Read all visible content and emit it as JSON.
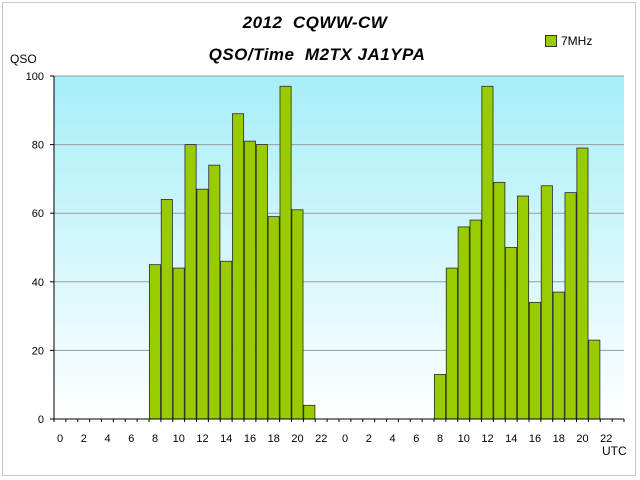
{
  "chart_data": {
    "type": "bar",
    "title": "2012  CQWW-CW",
    "subtitle": "QSO/Time  M2TX JA1YPA",
    "ylabel": "QSO",
    "xlabel": "UTC",
    "ylim": [
      0,
      100
    ],
    "yticks": [
      0,
      20,
      40,
      60,
      80,
      100
    ],
    "grid": true,
    "legend_position": "top-right",
    "categories": [
      "0",
      "1",
      "2",
      "3",
      "4",
      "5",
      "6",
      "7",
      "8",
      "9",
      "10",
      "11",
      "12",
      "13",
      "14",
      "15",
      "16",
      "17",
      "18",
      "19",
      "20",
      "21",
      "22",
      "23",
      "0",
      "1",
      "2",
      "3",
      "4",
      "5",
      "6",
      "7",
      "8",
      "9",
      "10",
      "11",
      "12",
      "13",
      "14",
      "15",
      "16",
      "17",
      "18",
      "19",
      "20",
      "21",
      "22",
      "23"
    ],
    "xtick_labels": [
      "0",
      "",
      "2",
      "",
      "4",
      "",
      "6",
      "",
      "8",
      "",
      "10",
      "",
      "12",
      "",
      "14",
      "",
      "16",
      "",
      "18",
      "",
      "20",
      "",
      "22",
      "",
      "0",
      "",
      "2",
      "",
      "4",
      "",
      "6",
      "",
      "8",
      "",
      "10",
      "",
      "12",
      "",
      "14",
      "",
      "16",
      "",
      "18",
      "",
      "20",
      "",
      "22",
      ""
    ],
    "series": [
      {
        "name": "7MHz",
        "color": "#99cc00",
        "values": [
          0,
          0,
          0,
          0,
          0,
          0,
          0,
          0,
          45,
          64,
          44,
          80,
          67,
          74,
          46,
          89,
          81,
          80,
          59,
          97,
          61,
          4,
          0,
          0,
          0,
          0,
          0,
          0,
          0,
          0,
          0,
          0,
          13,
          44,
          56,
          58,
          97,
          69,
          50,
          65,
          34,
          68,
          37,
          66,
          79,
          23,
          0,
          0
        ]
      }
    ]
  }
}
